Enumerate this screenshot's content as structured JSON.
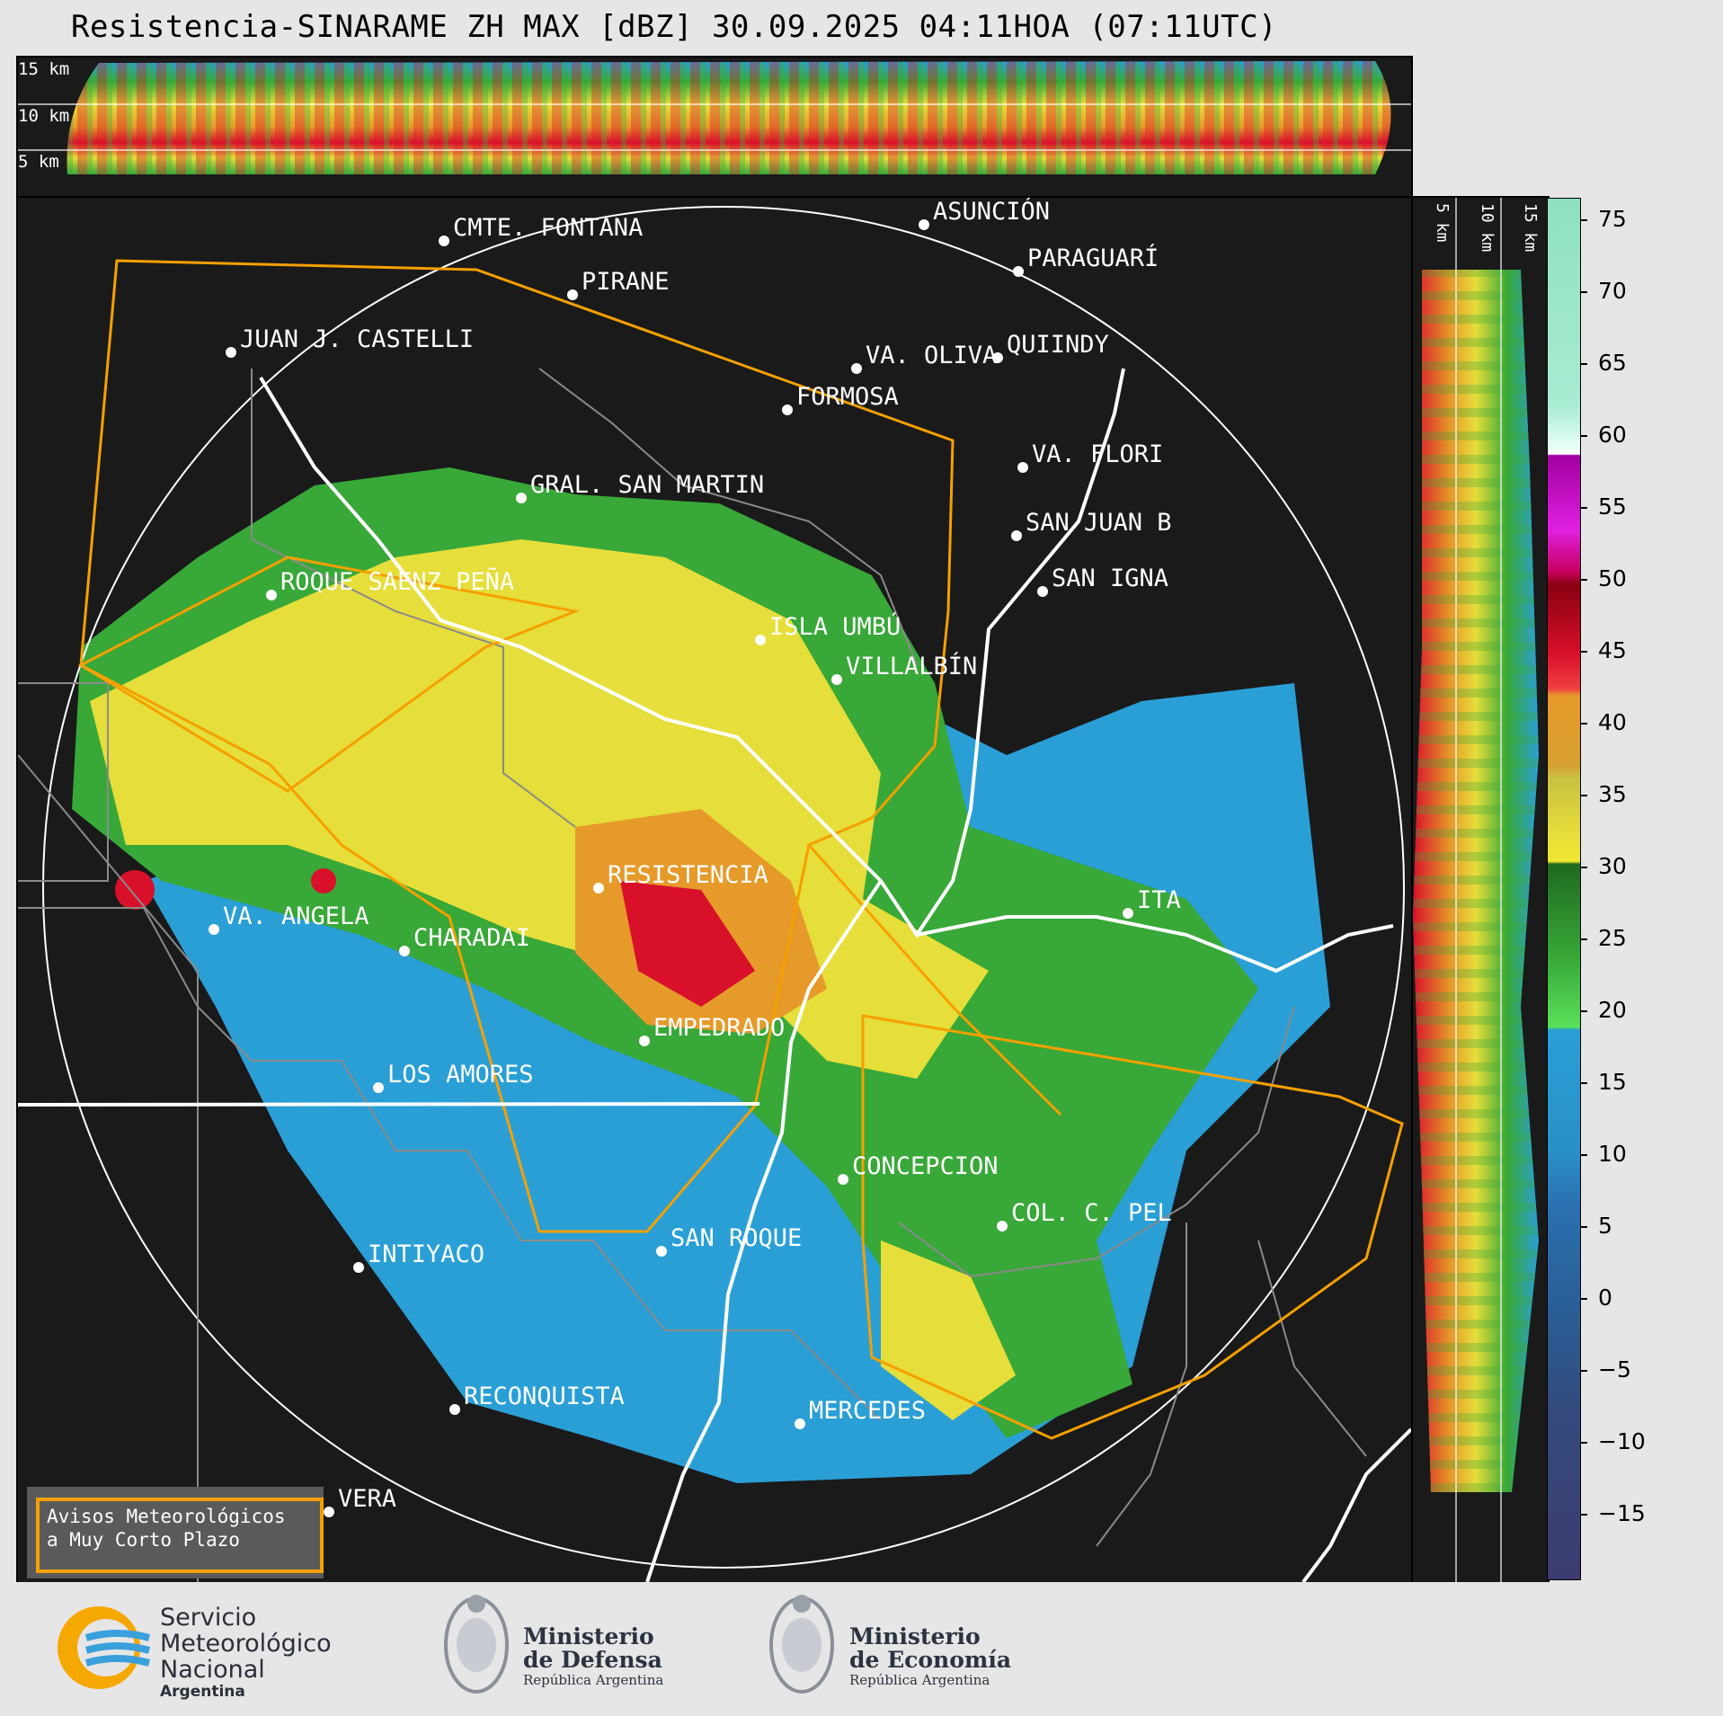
{
  "title": "Resistencia-SINARAME ZH MAX [dBZ] 30.09.2025 04:11HOA (07:11UTC)",
  "top_panel": {
    "height_labels": [
      "15 km",
      "10 km",
      "5 km"
    ]
  },
  "side_panel": {
    "height_labels": [
      "5 km",
      "10 km",
      "15 km"
    ]
  },
  "colorbar": {
    "unit": "dBZ",
    "ticks": [
      "75",
      "70",
      "65",
      "60",
      "55",
      "50",
      "45",
      "40",
      "35",
      "30",
      "25",
      "20",
      "15",
      "10",
      "5",
      "0",
      "−5",
      "−10",
      "−15"
    ],
    "colors": {
      "bg": "#1a1a1a",
      "light_blue": "#2a9fd6",
      "green": "#38a838",
      "yellow": "#e6de3a",
      "orange": "#e69a2a",
      "red": "#d8102a",
      "magenta": "#e020e0",
      "teal_high": "#8fe0c0"
    }
  },
  "map": {
    "cities": [
      {
        "name": "CMTE. FONTANA"
      },
      {
        "name": "ASUNCIÓN"
      },
      {
        "name": "PARAGUARÍ"
      },
      {
        "name": "PIRANE"
      },
      {
        "name": "JUAN J. CASTELLI"
      },
      {
        "name": "VA. OLIVA"
      },
      {
        "name": "QUIINDY"
      },
      {
        "name": "FORMOSA"
      },
      {
        "name": "VA. FLORI"
      },
      {
        "name": "GRAL. SAN MARTIN"
      },
      {
        "name": "SAN JUAN B"
      },
      {
        "name": "ROQUE SAENZ PEÑA"
      },
      {
        "name": "SAN IGNA"
      },
      {
        "name": "ISLA UMBÚ"
      },
      {
        "name": "VILLALBÍN"
      },
      {
        "name": "RESISTENCIA"
      },
      {
        "name": "VA. ANGELA"
      },
      {
        "name": "CHARADAI"
      },
      {
        "name": "ITA"
      },
      {
        "name": "EMPEDRADO"
      },
      {
        "name": "LOS AMORES"
      },
      {
        "name": "CONCEPCION"
      },
      {
        "name": "COL. C. PEL"
      },
      {
        "name": "SAN ROQUE"
      },
      {
        "name": "INTIYACO"
      },
      {
        "name": "RECONQUISTA"
      },
      {
        "name": "MERCEDES"
      },
      {
        "name": "VERA"
      }
    ]
  },
  "warning_box": {
    "line1": "Avisos Meteorológicos",
    "line2": "a Muy Corto Plazo"
  },
  "logos": {
    "smn": {
      "line1": "Servicio",
      "line2": "Meteorológico",
      "line3": "Nacional",
      "line4": "Argentina"
    },
    "defensa": {
      "line1": "Ministerio",
      "line2": "de Defensa",
      "line3": "República Argentina"
    },
    "economia": {
      "line1": "Ministerio",
      "line2": "de Economía",
      "line3": "República Argentina"
    }
  }
}
